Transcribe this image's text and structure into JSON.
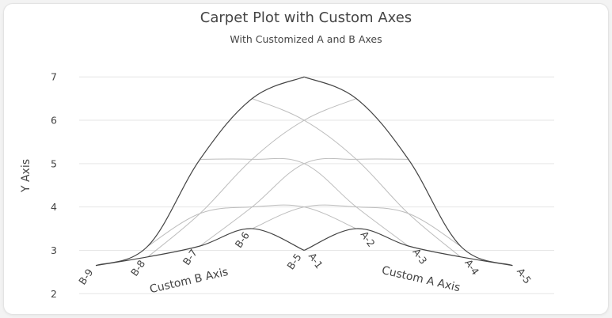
{
  "chart_data": {
    "type": "carpet",
    "title": "Carpet Plot with Custom Axes",
    "subtitle": "With Customized A and B Axes",
    "ylabel": "Y Axis",
    "yticks": [
      2,
      3,
      4,
      5,
      6,
      7
    ],
    "ylim": [
      1.75,
      7.35
    ],
    "x_range": [
      -2.35,
      2.4
    ],
    "grid": true,
    "a_axis": {
      "title": "Custom A Axis",
      "values": [
        1,
        2,
        3,
        4,
        5
      ],
      "tick_labels": [
        "A-1",
        "A-2",
        "A-3",
        "A-4",
        "A-5"
      ]
    },
    "b_axis": {
      "title": "Custom B Axis",
      "values": [
        5,
        6,
        7,
        8,
        9
      ],
      "tick_labels": [
        "B-5",
        "B-6",
        "B-7",
        "B-8",
        "B-9"
      ]
    },
    "x": [
      [
        0.0,
        -0.5,
        -1.0,
        -1.5,
        -2.0
      ],
      [
        0.5,
        0.0,
        -0.5,
        -1.0,
        -1.5
      ],
      [
        1.0,
        0.5,
        0.0,
        -0.5,
        -1.0
      ],
      [
        1.5,
        1.0,
        0.5,
        0.0,
        -0.5
      ],
      [
        2.0,
        1.5,
        1.0,
        0.5,
        0.0
      ]
    ],
    "y": [
      [
        3.0,
        3.5,
        3.1,
        2.85,
        2.65
      ],
      [
        3.5,
        4.0,
        4.0,
        3.85,
        3.1
      ],
      [
        3.1,
        4.0,
        5.0,
        5.1,
        5.1
      ],
      [
        2.85,
        3.85,
        5.1,
        6.0,
        6.5
      ],
      [
        2.65,
        3.1,
        5.1,
        6.5,
        7.0
      ]
    ]
  }
}
